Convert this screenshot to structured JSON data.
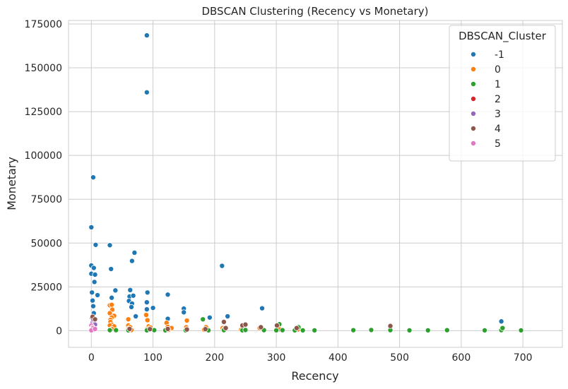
{
  "chart_data": {
    "type": "scatter",
    "title": "DBSCAN Clustering (Recency vs Monetary)",
    "xlabel": "Recency",
    "ylabel": "Monetary",
    "xlim": [
      -37,
      764
    ],
    "ylim": [
      -9500,
      177000
    ],
    "xticks": [
      0,
      100,
      200,
      300,
      400,
      500,
      600,
      700
    ],
    "yticks": [
      0,
      25000,
      50000,
      75000,
      100000,
      125000,
      150000,
      175000
    ],
    "grid": true,
    "legend": {
      "title": "DBSCAN_Cluster",
      "placement": "top-right"
    },
    "series": [
      {
        "name": "-1",
        "color": "#1f77b4",
        "points": [
          [
            90,
            168500
          ],
          [
            90,
            136000
          ],
          [
            3,
            87500
          ],
          [
            0,
            59000
          ],
          [
            7,
            49000
          ],
          [
            30,
            48800
          ],
          [
            70,
            44500
          ],
          [
            66,
            39800
          ],
          [
            212,
            37000
          ],
          [
            0,
            37200
          ],
          [
            4,
            35800
          ],
          [
            32,
            35200
          ],
          [
            0,
            32500
          ],
          [
            6,
            32000
          ],
          [
            5,
            27800
          ],
          [
            39,
            23000
          ],
          [
            63,
            23200
          ],
          [
            91,
            21800
          ],
          [
            1,
            21800
          ],
          [
            124,
            20600
          ],
          [
            10,
            20300
          ],
          [
            62,
            19500
          ],
          [
            68,
            20000
          ],
          [
            33,
            18800
          ],
          [
            2,
            17200
          ],
          [
            61,
            17000
          ],
          [
            90,
            16200
          ],
          [
            66,
            15500
          ],
          [
            3,
            14000
          ],
          [
            29,
            14500
          ],
          [
            150,
            12600
          ],
          [
            90,
            12200
          ],
          [
            100,
            13000
          ],
          [
            65,
            13500
          ],
          [
            277,
            12800
          ],
          [
            150,
            10500
          ],
          [
            4,
            10000
          ],
          [
            72,
            8200
          ],
          [
            192,
            7500
          ],
          [
            221,
            8200
          ],
          [
            124,
            6800
          ],
          [
            665,
            5300
          ],
          [
            1,
            7500
          ],
          [
            3,
            5000
          ]
        ]
      },
      {
        "name": "0",
        "color": "#ff7f0e",
        "points": [
          [
            30,
            14500
          ],
          [
            33,
            14800
          ],
          [
            34,
            12000
          ],
          [
            30,
            10000
          ],
          [
            37,
            8500
          ],
          [
            89,
            9000
          ],
          [
            33,
            7500
          ],
          [
            60,
            6500
          ],
          [
            91,
            6000
          ],
          [
            31,
            6200
          ],
          [
            122,
            4500
          ],
          [
            155,
            5800
          ],
          [
            31,
            5000
          ],
          [
            33,
            3500
          ],
          [
            30,
            3000
          ],
          [
            37,
            2500
          ],
          [
            60,
            3000
          ],
          [
            63,
            2000
          ],
          [
            93,
            2500
          ],
          [
            96,
            1800
          ],
          [
            124,
            2200
          ],
          [
            130,
            1500
          ],
          [
            154,
            2000
          ],
          [
            186,
            2000
          ],
          [
            213,
            1500
          ],
          [
            247,
            1200
          ],
          [
            273,
            1500
          ],
          [
            33,
            1000
          ],
          [
            60,
            1000
          ],
          [
            90,
            800
          ],
          [
            155,
            800
          ],
          [
            215,
            800
          ],
          [
            485,
            2000
          ],
          [
            30,
            500
          ],
          [
            65,
            400
          ],
          [
            125,
            500
          ],
          [
            183,
            600
          ],
          [
            243,
            500
          ],
          [
            305,
            800
          ],
          [
            335,
            700
          ]
        ]
      },
      {
        "name": "1",
        "color": "#2ca02c",
        "points": [
          [
            30,
            300
          ],
          [
            40,
            300
          ],
          [
            60,
            200
          ],
          [
            90,
            200
          ],
          [
            102,
            300
          ],
          [
            120,
            200
          ],
          [
            153,
            200
          ],
          [
            181,
            6500
          ],
          [
            190,
            200
          ],
          [
            215,
            300
          ],
          [
            245,
            200
          ],
          [
            250,
            400
          ],
          [
            280,
            300
          ],
          [
            300,
            200
          ],
          [
            305,
            3700
          ],
          [
            310,
            300
          ],
          [
            330,
            200
          ],
          [
            336,
            2000
          ],
          [
            343,
            200
          ],
          [
            362,
            200
          ],
          [
            425,
            300
          ],
          [
            454,
            400
          ],
          [
            485,
            300
          ],
          [
            516,
            200
          ],
          [
            546,
            200
          ],
          [
            577,
            300
          ],
          [
            638,
            200
          ],
          [
            665,
            300
          ],
          [
            667,
            1500
          ],
          [
            697,
            200
          ]
        ]
      },
      {
        "name": "2",
        "color": "#d62728",
        "points": [
          [
            1,
            1500
          ],
          [
            3,
            1200
          ]
        ]
      },
      {
        "name": "3",
        "color": "#9467bd",
        "points": [
          [
            2,
            4500
          ],
          [
            5,
            5500
          ],
          [
            3,
            6500
          ],
          [
            6,
            3500
          ],
          [
            1,
            2500
          ]
        ]
      },
      {
        "name": "4",
        "color": "#8c564b",
        "points": [
          [
            62,
            1000
          ],
          [
            95,
            900
          ],
          [
            124,
            1000
          ],
          [
            155,
            700
          ],
          [
            185,
            900
          ],
          [
            215,
            5000
          ],
          [
            218,
            1500
          ],
          [
            245,
            3000
          ],
          [
            250,
            3500
          ],
          [
            275,
            2000
          ],
          [
            301,
            3000
          ],
          [
            333,
            1500
          ],
          [
            485,
            2700
          ],
          [
            2,
            8000
          ],
          [
            6,
            6500
          ]
        ]
      },
      {
        "name": "5",
        "color": "#e377c2",
        "points": [
          [
            0,
            3000
          ],
          [
            2,
            2000
          ],
          [
            1,
            1000
          ],
          [
            4,
            500
          ],
          [
            3,
            1500
          ],
          [
            0,
            200
          ],
          [
            6,
            1000
          ]
        ]
      }
    ]
  }
}
